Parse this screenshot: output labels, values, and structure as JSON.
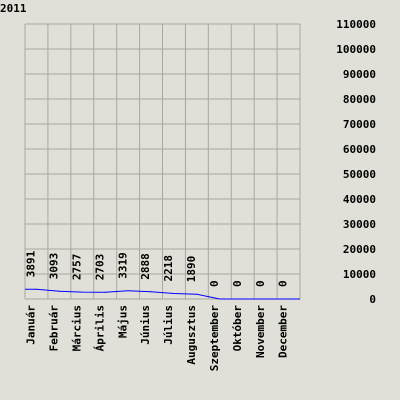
{
  "chart_data": {
    "type": "line",
    "title": "2011",
    "categories": [
      "Január",
      "Február",
      "Március",
      "Április",
      "Május",
      "Június",
      "Július",
      "Augusztus",
      "Szeptember",
      "Október",
      "November",
      "December"
    ],
    "series": [
      {
        "values": [
          3891,
          3093,
          2757,
          2703,
          3319,
          2888,
          2218,
          1890,
          0,
          0,
          0,
          0
        ]
      }
    ],
    "value_labels": [
      "3891",
      "3093",
      "2757",
      "2703",
      "3319",
      "2888",
      "2218",
      "1890",
      "0",
      "0",
      "0",
      "0"
    ],
    "y_tick_labels": [
      "0",
      "10000",
      "20000",
      "30000",
      "40000",
      "50000",
      "60000",
      "70000",
      "80000",
      "90000",
      "100000",
      "110000"
    ],
    "ylim": [
      0,
      110000
    ],
    "y_axis_side": "right",
    "grid": true,
    "colors": {
      "background": "#e0e0d8",
      "grid": "#a8a8a0",
      "line": "#0000ff",
      "text": "#000000"
    }
  }
}
